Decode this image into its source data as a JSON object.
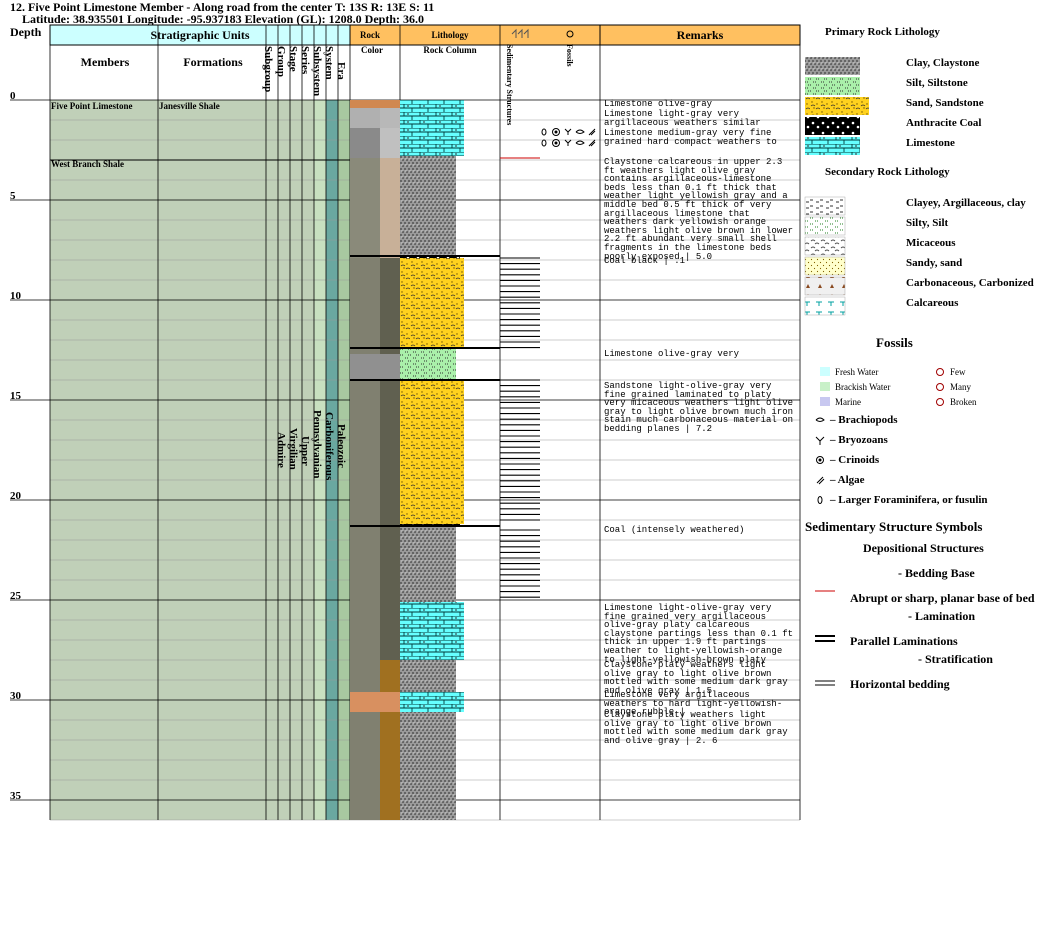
{
  "header": {
    "line1": "12. Five Point Limestone Member - Along road from the center  T: 13S R: 13E S: 11",
    "line2": "Latitude: 38.935501 Longitude: -95.937183 Elevation (GL): 1208.0 Depth: 36.0"
  },
  "columns": {
    "depth": "Depth",
    "strat_units": "Stratigraphic Units",
    "members": "Members",
    "formations": "Formations",
    "subgroup": "Subgroup",
    "group": "Group",
    "stage": "Stage",
    "series": "Series",
    "subsystem": "Subsystem",
    "system": "System",
    "era": "Era",
    "rock": "Rock",
    "color": "Color",
    "lithology": "Lithology",
    "rock_column": "Rock Column",
    "sed_structures": "Sedimentary Structures",
    "fossils": "Fossils",
    "remarks": "Remarks"
  },
  "depth_ticks": [
    "0",
    "5",
    "10",
    "15",
    "20",
    "25",
    "30",
    "35"
  ],
  "strat": {
    "members": [
      {
        "name": "Five Point Limestone"
      },
      {
        "name": "West Branch Shale"
      }
    ],
    "formation": "Janesville Shale",
    "group": "Admire",
    "stage": "Virgilian",
    "series": "Upper",
    "subsystem": "Pennsylvanian",
    "system": "Carboniferous",
    "era": "Paleozoic"
  },
  "colors": {
    "header_bg": "#ccffff",
    "strat_bg": "#c0d0b8",
    "subsystem_col": "#c8e0c0",
    "system_col": "#6aa8a0",
    "era_col": "#a8c8a0",
    "remarks_header": "#ffc060",
    "limestone": "#66ffff",
    "sandstone": "#ffd21e",
    "siltstone": "#aaf0aa",
    "clay": "#909090",
    "coal": "#000000",
    "bedding_base": "#cc0000"
  },
  "remarks": [
    {
      "depth": 0.0,
      "text": "Limestone olive-gray"
    },
    {
      "depth": 0.5,
      "text": "Limestone light-gray very argillaceous weathers similar"
    },
    {
      "depth": 1.4,
      "text": "Limestone medium-gray very fine grained hard compact weathers to"
    },
    {
      "depth": 2.8,
      "text": "Claystone calcareous in upper 2.3 ft weathers light olive gray contains argillaceous-limestone beds less than 0.1 ft thick that weather light yellowish gray and a middle bed 0.5 ft thick of very argillaceous limestone that weathers dark yellowish orange weathers light olive brown in lower 2.2 ft abundant very small shell fragments in the limestone beds poorly exposed | 5.0"
    },
    {
      "depth": 7.8,
      "text": "Coal black | .1"
    },
    {
      "depth": 12.4,
      "text": "Limestone olive-gray very"
    },
    {
      "depth": 14.0,
      "text": "Sandstone light-olive-gray very fine grained laminated to platy very micaceous weathers light olive gray to light olive brown much iron stain much carbonaceous material on bedding planes | 7.2"
    },
    {
      "depth": 21.3,
      "text": "Coal (intensely weathered)"
    },
    {
      "depth": 25.1,
      "text": "Limestone light-olive-gray very fine grained very argillaceous olive-gray platy calcareous claystone partings less than 0.1 ft thick in upper 1.9 ft partings weather to light-yellowish-orange to light-yellowish-brown platy"
    },
    {
      "depth": 28.0,
      "text": "Claystone platy weathers light olive gray to light olive brown mottled with some medium dark gray and olive gray | 1.5"
    },
    {
      "depth": 29.6,
      "text": "Limestone very argillaceous weathers to hard light-yellowish-orange rubble |"
    },
    {
      "depth": 30.6,
      "text": "Claystone platy weathers light olive gray to light olive brown mottled with some medium dark gray and olive gray | 2. 6"
    }
  ],
  "legend": {
    "primary_title": "Primary Rock Lithology",
    "primary": [
      {
        "label": "Clay, Claystone",
        "pattern": "clay"
      },
      {
        "label": "Silt, Siltstone",
        "pattern": "silt"
      },
      {
        "label": "Sand, Sandstone",
        "pattern": "sand"
      },
      {
        "label": "Anthracite Coal",
        "pattern": "coal"
      },
      {
        "label": "Limestone",
        "pattern": "limestone"
      }
    ],
    "secondary_title": "Secondary Rock Lithology",
    "secondary": [
      {
        "label": "Clayey, Argillaceous, clay",
        "pattern": "clayey"
      },
      {
        "label": "Silty, Silt",
        "pattern": "silty"
      },
      {
        "label": "Micaceous",
        "pattern": "micaceous"
      },
      {
        "label": "Sandy, sand",
        "pattern": "sandy"
      },
      {
        "label": "Carbonaceous, Carbonized",
        "pattern": "carbonaceous"
      },
      {
        "label": "Calcareous",
        "pattern": "calcareous"
      }
    ],
    "fossils_title": "Fossils",
    "fossil_env": [
      {
        "label": "Fresh Water",
        "color": "#ccffff"
      },
      {
        "label": "Brackish Water",
        "color": "#c8f0c8"
      },
      {
        "label": "Marine",
        "color": "#c8c8f0"
      }
    ],
    "fossil_abundance": [
      "Few",
      "Many",
      "Broken"
    ],
    "fossil_types": [
      {
        "label": "– Brachiopods",
        "icon": "brachiopod-icon"
      },
      {
        "label": "– Bryozoans",
        "icon": "bryozoan-icon"
      },
      {
        "label": "– Crinoids",
        "icon": "crinoid-icon"
      },
      {
        "label": "– Algae",
        "icon": "algae-icon"
      },
      {
        "label": "– Larger Foraminifera, or fusulin",
        "icon": "foraminifera-icon"
      }
    ],
    "sed_title": "Sedimentary Structure Symbols",
    "dep_title": "Depositional Structures",
    "bedding_base_title": "- Bedding Base",
    "abrupt_label": "Abrupt or sharp, planar base of bed",
    "lamination_title": "- Lamination",
    "parallel_label": "Parallel Laminations",
    "stratification_title": "- Stratification",
    "horizontal_label": "Horizontal bedding"
  }
}
